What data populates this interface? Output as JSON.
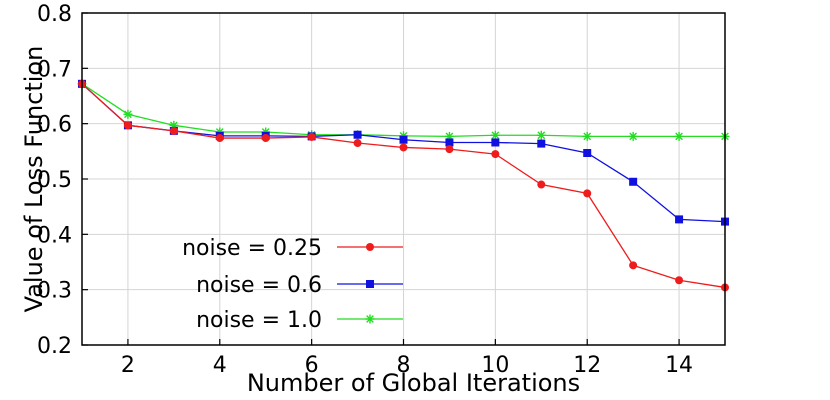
{
  "chart_data": {
    "type": "line",
    "xlabel": "Number of Global Iterations",
    "ylabel": "Value of Loss Function",
    "xlim": [
      1,
      15
    ],
    "ylim": [
      0.2,
      0.8
    ],
    "xticks": [
      2,
      4,
      6,
      8,
      10,
      12,
      14
    ],
    "yticks": [
      0.2,
      0.3,
      0.4,
      0.5,
      0.6,
      0.7,
      0.8
    ],
    "grid": true,
    "legend_position": "bottom-left",
    "x": [
      1,
      2,
      3,
      4,
      5,
      6,
      7,
      8,
      9,
      10,
      11,
      12,
      13,
      14,
      15
    ],
    "series": [
      {
        "name": "noise = 0.25",
        "color": "#ee1c1c",
        "marker": "circle",
        "values": [
          0.672,
          0.597,
          0.587,
          0.574,
          0.574,
          0.576,
          0.565,
          0.557,
          0.554,
          0.545,
          0.49,
          0.474,
          0.344,
          0.317,
          0.304
        ]
      },
      {
        "name": "noise = 0.6",
        "color": "#1010e0",
        "marker": "square",
        "values": [
          0.672,
          0.597,
          0.587,
          0.578,
          0.578,
          0.577,
          0.58,
          0.571,
          0.566,
          0.566,
          0.564,
          0.547,
          0.495,
          0.427,
          0.423
        ]
      },
      {
        "name": "noise = 1.0",
        "color": "#22dd22",
        "marker": "star",
        "values": [
          0.672,
          0.617,
          0.597,
          0.585,
          0.585,
          0.58,
          0.58,
          0.578,
          0.577,
          0.579,
          0.579,
          0.577,
          0.577,
          0.577,
          0.577
        ]
      }
    ]
  }
}
